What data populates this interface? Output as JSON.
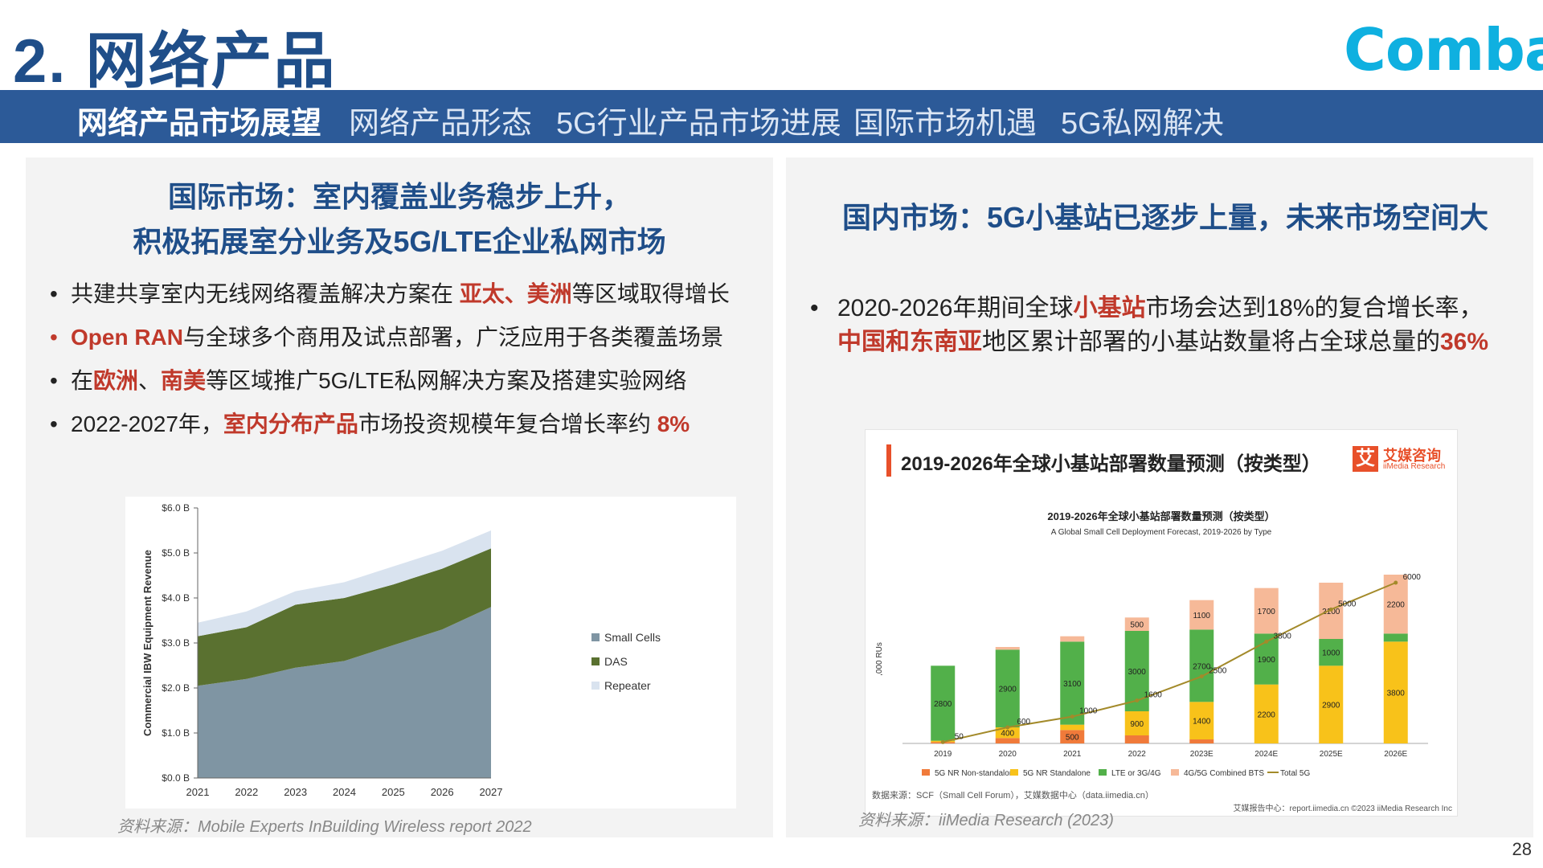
{
  "header": {
    "title": "2. 网络产品",
    "logo": "Comba"
  },
  "nav": {
    "items": [
      "网络产品市场展望",
      "网络产品形态",
      "5G行业产品市场进展",
      "国际市场机遇",
      "5G私网解决"
    ]
  },
  "left": {
    "heading_line1": "国际市场：室内覆盖业务稳步上升，",
    "heading_line2": "积极拓展室分业务及5G/LTE企业私网市场",
    "b1_pre": "共建共享室内无线网络覆盖解决方案在 ",
    "b1_red": "亚太、美洲",
    "b1_post": "等区域取得增长",
    "b2_red": "Open RAN",
    "b2_post": "与全球多个商用及试点部署，广泛应用于各类覆盖场景",
    "b3_pre": "在",
    "b3_red1": "欧洲",
    "b3_mid": "、",
    "b3_red2": "南美",
    "b3_post": "等区域推广5G/LTE私网解决方案及搭建实验网络",
    "b4_pre": "2022-2027年，",
    "b4_red": "室内分布产品",
    "b4_mid": "市场投资规模年复合增长率约 ",
    "b4_red2": "8%",
    "source": "资料来源：Mobile Experts InBuilding Wireless report 2022"
  },
  "right": {
    "heading": "国内市场：5G小基站已逐步上量，未来市场空间大",
    "b1_pre": "2020-2026年期间全球",
    "b1_red": "小基站",
    "b1_post": "市场会达到18%的复合增长率，",
    "b2_red": "中国和东南亚",
    "b2_mid": "地区累计部署的小基站数量将占全球总量的",
    "b2_red2": "36%",
    "chart_outer_title": "2019-2026年全球小基站部署数量预测（按类型）",
    "brand": "艾媒咨询",
    "brand_sub": "iiMedia Research",
    "footnote": "数据来源：SCF（Small Cell Forum），艾媒数据中心（data.iimedia.cn）",
    "footnote2": "艾媒报告中心：report.iimedia.cn   ©2023  iiMedia Research  Inc",
    "source": "资料来源：iiMedia Research (2023)"
  },
  "page_number": "28",
  "chart_data": [
    {
      "type": "area",
      "stacked": true,
      "x": [
        "2021",
        "2022",
        "2023",
        "2024",
        "2025",
        "2026",
        "2027"
      ],
      "series": [
        {
          "name": "Small Cells",
          "values": [
            2.05,
            2.2,
            2.45,
            2.6,
            2.95,
            3.3,
            3.8
          ],
          "color": "#7f95a3"
        },
        {
          "name": "DAS",
          "values": [
            1.1,
            1.15,
            1.4,
            1.4,
            1.35,
            1.35,
            1.3
          ],
          "color": "#5a7130"
        },
        {
          "name": "Repeater",
          "values": [
            0.3,
            0.35,
            0.3,
            0.35,
            0.4,
            0.4,
            0.4
          ],
          "color": "#d9e3ef"
        }
      ],
      "ylabel": "Commercial IBW Equipment Revenue",
      "y_ticks": [
        "$0.0 B",
        "$1.0 B",
        "$2.0 B",
        "$3.0 B",
        "$4.0 B",
        "$5.0 B",
        "$6.0 B"
      ],
      "ylim": [
        0,
        6
      ],
      "legend": "right"
    },
    {
      "type": "bar",
      "stacked": true,
      "title": "2019-2026年全球小基站部署数量预测（按类型）",
      "subtitle": "A Global Small Cell Deployment Forecast, 2019-2026 by Type",
      "ylabel": ",000 RUs",
      "categories": [
        "2019",
        "2020",
        "2021",
        "2022",
        "2023E",
        "2024E",
        "2025E",
        "2026E"
      ],
      "series": [
        {
          "name": "5G NR Non-standalone",
          "values": [
            50,
            200,
            500,
            300,
            150,
            0,
            0,
            0
          ],
          "color": "#f07a3a"
        },
        {
          "name": "5G NR Standalone",
          "values": [
            50,
            400,
            200,
            900,
            1400,
            2200,
            2900,
            3800
          ],
          "color": "#f8c21a"
        },
        {
          "name": "LTE or 3G/4G",
          "values": [
            2800,
            2900,
            3100,
            3000,
            2700,
            1900,
            1000,
            300
          ],
          "color": "#52b04a"
        },
        {
          "name": "4G/5G Combined BTS",
          "values": [
            0,
            100,
            200,
            500,
            1100,
            1700,
            2100,
            2200
          ],
          "color": "#f6b998"
        }
      ],
      "line": {
        "name": "Total 5G",
        "values": [
          50,
          600,
          1000,
          1600,
          2500,
          3800,
          5000,
          6000
        ],
        "color": "#a38a2a"
      },
      "legend": "bottom"
    }
  ]
}
